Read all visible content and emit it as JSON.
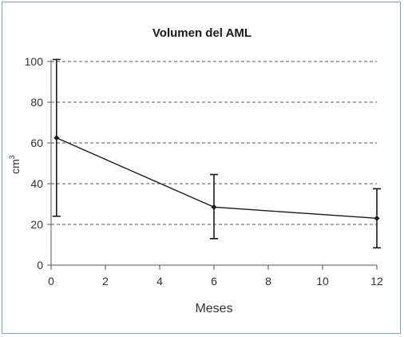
{
  "chart_data": {
    "type": "line",
    "title": "Volumen del AML",
    "xlabel": "Meses",
    "ylabel": "cm",
    "ylabel_superscript": "3",
    "xlim": [
      0,
      12
    ],
    "ylim": [
      0,
      100
    ],
    "x_ticks": [
      0,
      2,
      4,
      6,
      8,
      10,
      12
    ],
    "y_ticks": [
      0,
      20,
      40,
      60,
      80,
      100
    ],
    "grid": "horizontal dashed",
    "legend": "none",
    "colors": {
      "line": "#1a1a1a",
      "axis": "#555555",
      "grid": "#555555",
      "frame": "#7aa3c6"
    },
    "series": [
      {
        "points": [
          {
            "x": 0.2,
            "y": 62.5,
            "err_low": 24,
            "err_high": 101
          },
          {
            "x": 6,
            "y": 28.5,
            "err_low": 13,
            "err_high": 44.5
          },
          {
            "x": 12,
            "y": 23,
            "err_low": 8.5,
            "err_high": 37.5
          }
        ]
      }
    ]
  }
}
